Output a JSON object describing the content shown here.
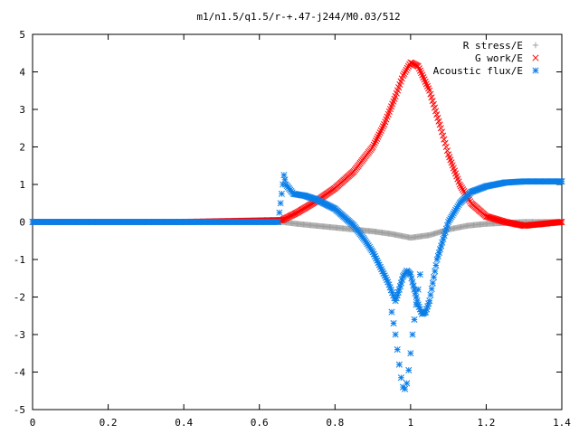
{
  "chart_data": {
    "type": "scatter",
    "title": "m1/n1.5/q1.5/r-+.47-j244/M0.03/512",
    "xlabel": "",
    "ylabel": "",
    "xlim": [
      0,
      1.4
    ],
    "ylim": [
      -5,
      5
    ],
    "x_ticks": [
      "0",
      "0.2",
      "0.4",
      "0.6",
      "0.8",
      "1",
      "1.2",
      "1.4"
    ],
    "y_ticks": [
      "5",
      "4",
      "3",
      "2",
      "1",
      "0",
      "-1",
      "-2",
      "-3",
      "-4",
      "-5"
    ],
    "legend_position": "top-right",
    "grid": false,
    "series": [
      {
        "name": "R stress/E",
        "marker": "plus",
        "color": "#a0a0a0",
        "x": [
          0.0,
          0.2,
          0.4,
          0.6,
          0.66,
          0.7,
          0.8,
          0.9,
          0.95,
          1.0,
          1.05,
          1.1,
          1.15,
          1.2,
          1.3,
          1.4
        ],
        "y": [
          0.0,
          0.0,
          0.0,
          0.0,
          0.0,
          -0.05,
          -0.15,
          -0.25,
          -0.32,
          -0.42,
          -0.35,
          -0.2,
          -0.1,
          -0.05,
          0.0,
          0.0
        ]
      },
      {
        "name": "G work/E",
        "marker": "cross",
        "color": "#ff0000",
        "x": [
          0.0,
          0.4,
          0.66,
          0.7,
          0.75,
          0.8,
          0.85,
          0.9,
          0.93,
          0.96,
          0.98,
          1.0,
          1.02,
          1.05,
          1.08,
          1.1,
          1.13,
          1.16,
          1.2,
          1.25,
          1.3,
          1.35,
          1.4
        ],
        "y": [
          0.0,
          0.0,
          0.05,
          0.25,
          0.55,
          0.9,
          1.35,
          2.0,
          2.6,
          3.35,
          3.9,
          4.25,
          4.15,
          3.5,
          2.5,
          1.8,
          1.0,
          0.5,
          0.15,
          0.0,
          -0.1,
          -0.05,
          0.0
        ]
      },
      {
        "name": "Acoustic flux/E",
        "marker": "star",
        "color": "#0a7ee8",
        "x": [
          0.0,
          0.4,
          0.65,
          0.665,
          0.67,
          0.69,
          0.72,
          0.75,
          0.8,
          0.85,
          0.88,
          0.9,
          0.92,
          0.94,
          0.96,
          0.97,
          0.98,
          0.99,
          1.0,
          1.01,
          1.02,
          1.03,
          1.04,
          1.05,
          1.07,
          1.1,
          1.13,
          1.16,
          1.2,
          1.25,
          1.3,
          1.35,
          1.4
        ],
        "y": [
          0.0,
          0.0,
          0.0,
          1.25,
          1.0,
          0.75,
          0.7,
          0.6,
          0.35,
          -0.1,
          -0.5,
          -0.8,
          -1.2,
          -1.6,
          -2.1,
          -1.8,
          -1.45,
          -1.3,
          -1.4,
          -1.8,
          -2.2,
          -2.45,
          -2.4,
          -2.1,
          -1.0,
          0.0,
          0.5,
          0.8,
          0.95,
          1.05,
          1.08,
          1.08,
          1.08
        ]
      },
      {
        "name": "",
        "marker": "star",
        "color": "#0a7ee8",
        "x": [
          0.95,
          0.955,
          0.96,
          0.965,
          0.97,
          0.975,
          0.98,
          0.985,
          0.99,
          0.995,
          1.0,
          1.005,
          1.01,
          1.015,
          1.02,
          1.025
        ],
        "y": [
          -2.4,
          -2.7,
          -3.0,
          -3.4,
          -3.8,
          -4.15,
          -4.4,
          -4.45,
          -4.3,
          -3.95,
          -3.5,
          -3.0,
          -2.6,
          -2.2,
          -1.8,
          -1.4
        ]
      }
    ]
  }
}
